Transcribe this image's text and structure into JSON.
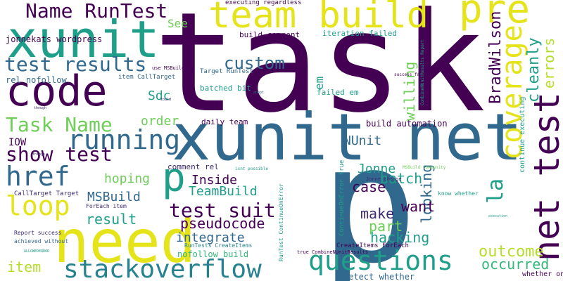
{
  "words": {
    "task": "task",
    "p": "p",
    "xunit_net": "xunit net",
    "need": "need",
    "code": "code",
    "xunit": "xunit",
    "team_build": "team build",
    "pre": "pre",
    "net_test": "net test",
    "stackoverflow": "stackoverflow",
    "questions": "questions",
    "running": "running",
    "loop": "loop",
    "href": "href",
    "coverage": "coverage",
    "name_runtest": "Name RunTest",
    "test_results": "test results",
    "task_name": "Task Name",
    "show_test": "show test",
    "test_suit": "test suit",
    "p_small": "p",
    "la": "la",
    "item": "item",
    "outcome": "outcome",
    "occurred": "occurred",
    "custom": "custom",
    "errors": "errors",
    "cleanly": "cleanly",
    "bradwilson": "BradWilson",
    "willing": "willing",
    "looking": "looking",
    "hacking": "hacking",
    "part": "part",
    "want": "want",
    "make": "make",
    "case": "case",
    "batch": "batch",
    "jonne": "Jonne",
    "nunit": "NUnit",
    "integrate": "integrate",
    "pseudocode": "pseudocode",
    "result": "result",
    "msbuild": "MSBuild",
    "teambuild": "TeamBuild",
    "inside": "Inside",
    "hoping": "hoping",
    "order": "order",
    "sdc": "Sdc",
    "iow": "IOW",
    "em": "em",
    "see": "See",
    "jonnekats_wordpress": "jonnekats wordpress",
    "rel_nofollow": "rel nofollow",
    "build_comment": "build comment",
    "iteration_failed": "iteration failed",
    "build_automation": "build automation",
    "daily_team": "daily team",
    "comment_rel": "comment rel",
    "failed_em": "failed em",
    "batched_bit": "batched bit",
    "nofollow_build": "nofollow build",
    "detect_whether": "detect whether",
    "whether_one": "whether one",
    "executing_regardless": "executing regardless",
    "item_calltarget": "item CallTarget",
    "target_runtest": "Target RunTest",
    "use_msbuild": "use MSBuild",
    "calltarget_target": "CallTarget Target",
    "foreach_item": "ForEach item",
    "report_success": "Report success",
    "achieved_without": "achieved without",
    "runtests_createitems": "RunTests CreateItems",
    "createitems_foreach": "CreateItems ForEach",
    "continue_executing": "continue executing",
    "continueonerror_true": "ContinueOnError true",
    "true_combinenunitresults": "true CombineNUnitResults",
    "runtest_continueonerror": "RunTest ContinueOnError",
    "msbuild_community": "MSBuild Community",
    "jonne_change": "Jonne change",
    "know_whether": "know whether",
    "success_failure": "success failure",
    "combinenunitresults_report": "CombineNUnitResults Report",
    "isnt_possible": "isnt possible",
    "tiny_1": "adopt",
    "tiny_2": "though",
    "tiny_3": "things",
    "tiny_4": "execution",
    "tiny_5": "could",
    "tiny_6": "ALLOWEDERROR"
  },
  "colors": {
    "dark_purple": "#440154",
    "purple": "#3e2a73",
    "blue": "#31688e",
    "steel_blue": "#26828e",
    "teal": "#1f9e89",
    "green": "#35b779",
    "light_green": "#6ece58",
    "yellow_green": "#b5de2b",
    "yellow": "#e5e31a"
  }
}
